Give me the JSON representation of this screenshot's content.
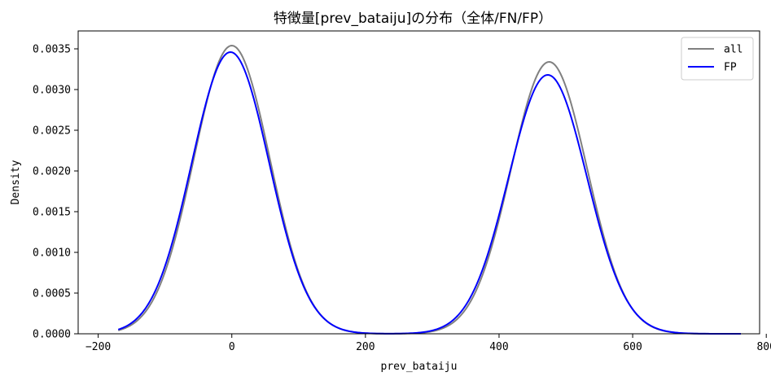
{
  "chart_data": {
    "type": "line",
    "title": "特徴量[prev_bataiju]の分布（全体/FN/FP）",
    "xlabel": "prev_bataiju",
    "ylabel": "Density",
    "xlim": [
      -230,
      790
    ],
    "ylim": [
      0,
      0.00372
    ],
    "xticks": [
      -200,
      0,
      200,
      400,
      600,
      800
    ],
    "xtick_labels": [
      "−200",
      "0",
      "200",
      "400",
      "600",
      "800"
    ],
    "yticks": [
      0,
      0.0005,
      0.001,
      0.0015,
      0.002,
      0.0025,
      0.003,
      0.0035
    ],
    "ytick_labels": [
      "0.0000",
      "0.0005",
      "0.0010",
      "0.0015",
      "0.0020",
      "0.0025",
      "0.0030",
      "0.0035"
    ],
    "grid": false,
    "legend_position": "upper right",
    "series": [
      {
        "name": "all",
        "color": "#808080",
        "x_range": [
          -170,
          762
        ],
        "components": [
          {
            "mean": 0,
            "sd": 57,
            "peak": 0.00354
          },
          {
            "mean": 475,
            "sd": 57,
            "peak": 0.00334
          }
        ]
      },
      {
        "name": "FP",
        "color": "#0000ff",
        "x_range": [
          -170,
          762
        ],
        "components": [
          {
            "mean": -2,
            "sd": 58,
            "peak": 0.00346
          },
          {
            "mean": 473,
            "sd": 58.5,
            "peak": 0.00318
          }
        ]
      }
    ]
  }
}
